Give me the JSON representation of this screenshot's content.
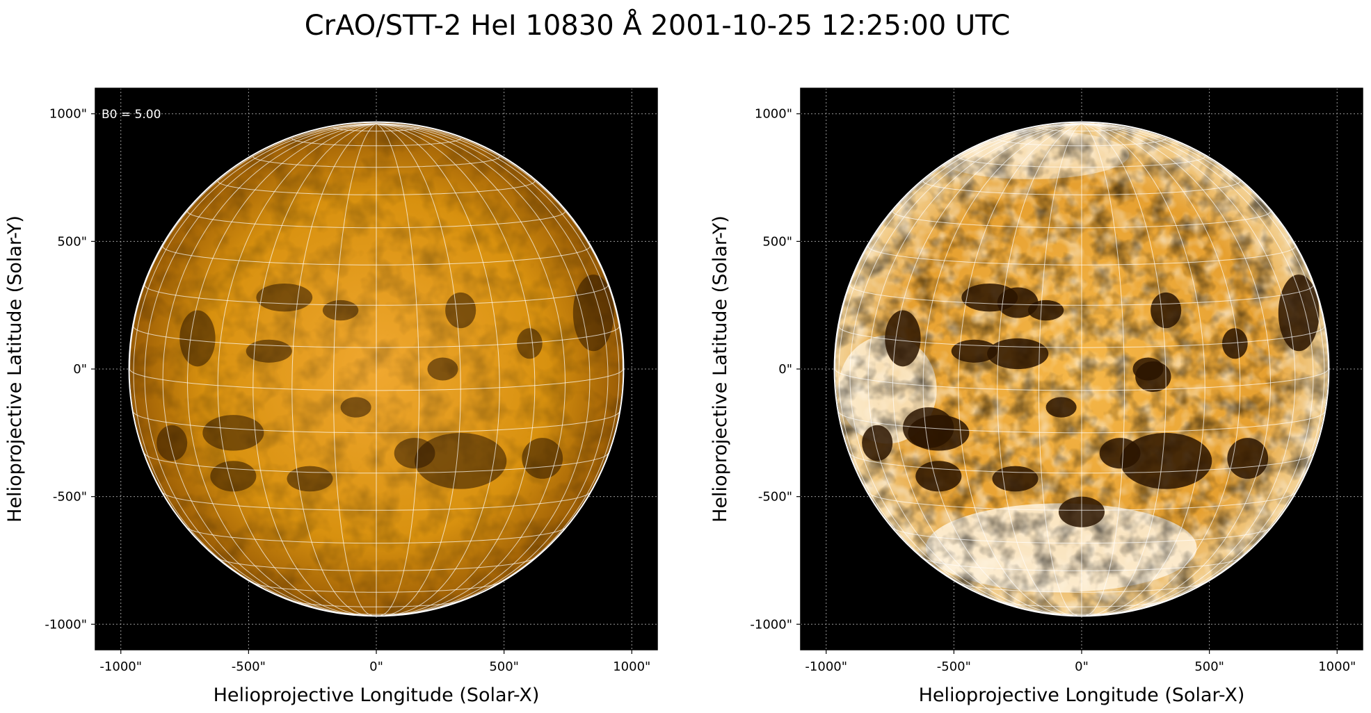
{
  "title": "CrAO/STT-2 HeI 10830 Å 2001-10-25 12:25:00 UTC",
  "colors": {
    "background": "#000000",
    "disk_base": "#d9900f",
    "disk_dark": "#2a1400",
    "disk_bright": "#ffffff",
    "grid": "#ffffff"
  },
  "panels": [
    {
      "annotation": "B0 = 5.00",
      "xlabel": "Helioprojective Longitude (Solar-X)",
      "ylabel": "Helioprojective Latitude (Solar-Y)",
      "x_ticks": [
        "-1000\"",
        "-500\"",
        "0\"",
        "500\"",
        "1000\""
      ],
      "y_ticks": [
        "1000\"",
        "500\"",
        "0\"",
        "-500\"",
        "-1000\""
      ]
    },
    {
      "annotation": "",
      "xlabel": "Helioprojective Longitude (Solar-X)",
      "ylabel": "Helioprojective Latitude (Solar-Y)",
      "x_ticks": [
        "-1000\"",
        "-500\"",
        "0\"",
        "500\"",
        "1000\""
      ],
      "y_ticks": [
        "1000\"",
        "500\"",
        "0\"",
        "-500\"",
        "-1000\""
      ]
    }
  ]
}
